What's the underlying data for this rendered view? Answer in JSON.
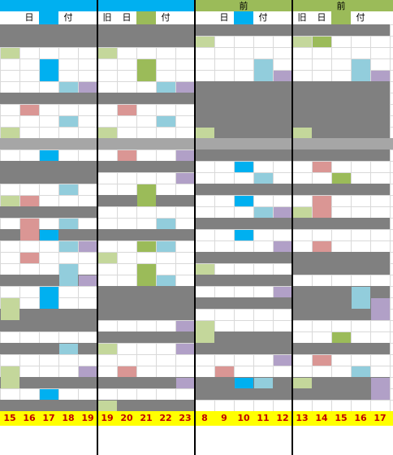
{
  "header": {
    "top_left_fill": "#00b0f0",
    "top_right_fill": "#9bbb59",
    "group_labels": [
      "",
      "",
      "前",
      "前"
    ],
    "sub_labels": [
      {
        "a": "日",
        "b": "付"
      },
      {
        "a": "旧",
        "b": "日",
        "c": "付"
      },
      {
        "a": "日",
        "b": "付"
      },
      {
        "a": "旧",
        "b": "日",
        "c": "付"
      }
    ]
  },
  "colors": {
    "blue": "#00b0f0",
    "lightblue": "#92cddc",
    "green": "#9bbb59",
    "lightgreen": "#c4d79b",
    "pink": "#da9694",
    "purple": "#b1a0c7",
    "gray": "#808080",
    "lightgray": "#a6a6a6",
    "yellow": "#ffff00",
    "red_text": "#c00000"
  },
  "footer": {
    "numbers": [
      "15",
      "16",
      "17",
      "18",
      "19",
      "19",
      "20",
      "21",
      "22",
      "23",
      "8",
      "9",
      "10",
      "11",
      "12",
      "13",
      "14",
      "15",
      "16",
      "17"
    ]
  }
}
